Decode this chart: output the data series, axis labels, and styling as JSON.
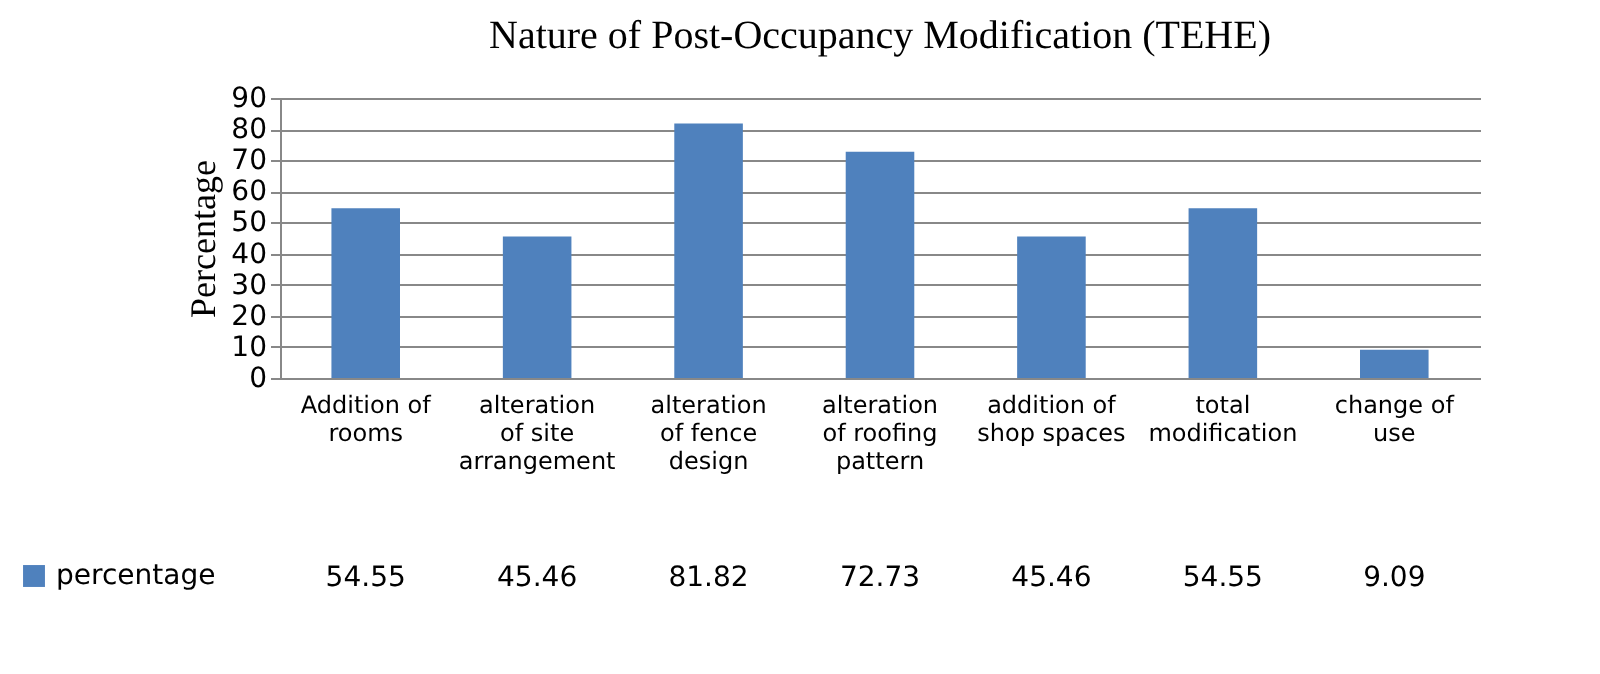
{
  "chart_data": {
    "type": "bar",
    "title": "Nature of Post-Occupancy Modification (TEHE)",
    "ylabel": "Percentage",
    "categories": [
      "Addition of rooms",
      "alteration of site arrangement",
      "alteration of fence design",
      "alteration of roofing pattern",
      "addition of shop spaces",
      "total modification",
      "change of use"
    ],
    "series": [
      {
        "name": "percentage",
        "color": "#4f81bd",
        "values": [
          54.55,
          45.46,
          81.82,
          72.73,
          45.46,
          54.55,
          9.09
        ]
      }
    ],
    "ylim": [
      0,
      90
    ],
    "yticks": [
      0,
      10,
      20,
      30,
      40,
      50,
      60,
      70,
      80,
      90
    ],
    "grid": "y",
    "data_labels": true,
    "legend": "bottom left"
  }
}
